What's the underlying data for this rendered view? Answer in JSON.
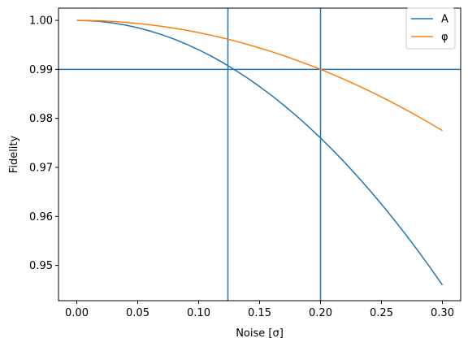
{
  "chart_data": {
    "type": "line",
    "title": "",
    "xlabel": "Noise [σ]",
    "ylabel": "Fidelity",
    "xlim": [
      -0.015,
      0.315
    ],
    "ylim": [
      0.9428,
      1.0025
    ],
    "grid": false,
    "legend_position": "top-right",
    "x_ticks": [
      {
        "value": 0.0,
        "label": "0.00"
      },
      {
        "value": 0.05,
        "label": "0.05"
      },
      {
        "value": 0.1,
        "label": "0.10"
      },
      {
        "value": 0.15,
        "label": "0.15"
      },
      {
        "value": 0.2,
        "label": "0.20"
      },
      {
        "value": 0.25,
        "label": "0.25"
      },
      {
        "value": 0.3,
        "label": "0.30"
      }
    ],
    "y_ticks": [
      {
        "value": 0.95,
        "label": "0.95"
      },
      {
        "value": 0.96,
        "label": "0.96"
      },
      {
        "value": 0.97,
        "label": "0.97"
      },
      {
        "value": 0.98,
        "label": "0.98"
      },
      {
        "value": 0.99,
        "label": "0.99"
      },
      {
        "value": 1.0,
        "label": "1.00"
      }
    ],
    "x": [
      0.0,
      0.01,
      0.02,
      0.03,
      0.04,
      0.05,
      0.06,
      0.07,
      0.08,
      0.09,
      0.1,
      0.11,
      0.12,
      0.13,
      0.14,
      0.15,
      0.16,
      0.17,
      0.18,
      0.19,
      0.2,
      0.21,
      0.22,
      0.23,
      0.24,
      0.25,
      0.26,
      0.27,
      0.28,
      0.29,
      0.3
    ],
    "series": [
      {
        "name": "A",
        "color": "#1f77b4",
        "values": [
          1.0,
          0.99994,
          0.99976,
          0.99946,
          0.99904,
          0.9985,
          0.99784,
          0.99706,
          0.99616,
          0.99514,
          0.994,
          0.99274,
          0.99136,
          0.98986,
          0.98824,
          0.9865,
          0.98464,
          0.98266,
          0.98056,
          0.97834,
          0.976,
          0.97354,
          0.97096,
          0.96826,
          0.96544,
          0.9625,
          0.95944,
          0.95626,
          0.95296,
          0.94954,
          0.946
        ]
      },
      {
        "name": "φ",
        "color": "#ff7f0e",
        "values": [
          1.0,
          0.999975,
          0.9999,
          0.999775,
          0.9996,
          0.999375,
          0.9991,
          0.998775,
          0.9984,
          0.997975,
          0.9975,
          0.996975,
          0.9964,
          0.995775,
          0.9951,
          0.994375,
          0.9936,
          0.992775,
          0.9919,
          0.990975,
          0.99,
          0.988975,
          0.9879,
          0.986775,
          0.9856,
          0.984375,
          0.9831,
          0.981775,
          0.9804,
          0.978975,
          0.9775
        ]
      }
    ],
    "reference_lines": {
      "color": "#1f77b4",
      "vertical": [
        0.124,
        0.2
      ],
      "horizontal": [
        0.99
      ]
    }
  }
}
